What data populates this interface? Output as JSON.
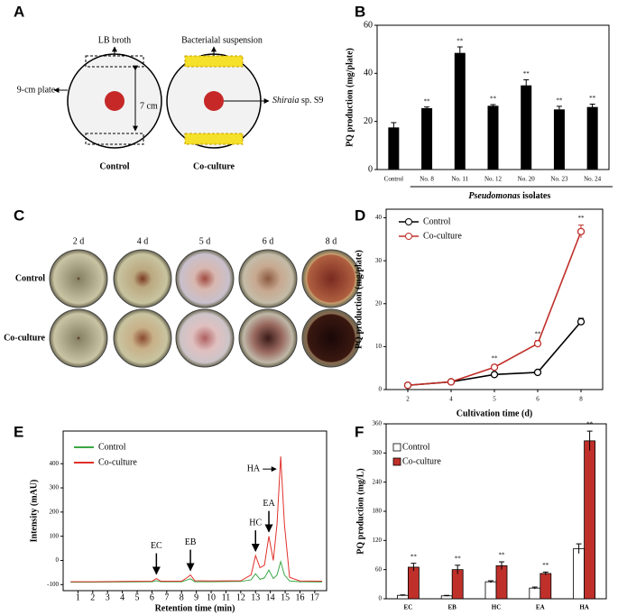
{
  "panel_labels": [
    "A",
    "B",
    "C",
    "D",
    "E",
    "F"
  ],
  "diagram": {
    "labels": {
      "lb_broth": "LB broth",
      "suspension": "Bacterialal suspension",
      "plate": "9-cm plate",
      "distance": "7 cm",
      "fungus_genus": "Shiraia",
      "fungus_rest": "sp. S9"
    },
    "captions": [
      "Control",
      "Co-culture"
    ]
  },
  "photos": {
    "columns": [
      "2 d",
      "4 d",
      "5 d",
      "6 d",
      "8 d"
    ],
    "rows": [
      "Control",
      "Co-culture"
    ]
  },
  "chart_data": [
    {
      "type": "bar",
      "categories": [
        "Control",
        "No. 8",
        "No. 11",
        "No. 12",
        "No. 20",
        "No. 23",
        "No. 24"
      ],
      "values": [
        17.5,
        25.5,
        48.5,
        26.5,
        35,
        25,
        26
      ],
      "errors": [
        2,
        0.5,
        2.5,
        0.5,
        2.3,
        1.3,
        1.2
      ],
      "significance": [
        null,
        "**",
        "**",
        "**",
        "**",
        "**",
        "**"
      ],
      "color": "#000000",
      "ylabel": "PQ production (mg/plate)",
      "group_label": {
        "italic": "Pseudomonas",
        "text": "isolates"
      },
      "ylim": [
        0,
        60
      ],
      "yticks": [
        0,
        20,
        40,
        60
      ]
    },
    {
      "type": "line",
      "categories": [
        "2",
        "4",
        "5",
        "6",
        "8"
      ],
      "series": [
        {
          "name": "Control",
          "color": "#000000",
          "values": [
            1,
            1.8,
            3.5,
            4,
            15.8
          ],
          "errors": [
            0,
            0.3,
            0.3,
            0.3,
            0.8
          ]
        },
        {
          "name": "Co-culture",
          "color": "#c0302a",
          "values": [
            1,
            1.8,
            5.2,
            10.7,
            36.8
          ],
          "errors": [
            0,
            0.3,
            0.5,
            0.7,
            1.5
          ]
        }
      ],
      "significance": [
        null,
        null,
        "**",
        "**",
        "**"
      ],
      "xlabel": "Cultivation time (d)",
      "ylabel": "PQ production (mg/plate)",
      "ylim": [
        0,
        42
      ],
      "yticks": [
        0,
        10,
        20,
        30,
        40
      ],
      "legend": "upper left"
    },
    {
      "type": "chromatogram",
      "x": [
        0.5,
        2,
        4,
        6,
        6.3,
        6.6,
        8,
        8.4,
        8.6,
        8.9,
        10,
        12,
        12.7,
        13.0,
        13.3,
        13.6,
        13.9,
        14.2,
        14.45,
        14.7,
        14.95,
        15.3,
        16,
        17.5
      ],
      "series": [
        {
          "name": "Control",
          "color": "#3aa845",
          "values": [
            -90,
            -90,
            -89,
            -88,
            -84,
            -88,
            -88,
            -80,
            -76,
            -88,
            -88,
            -87,
            -80,
            -55,
            -78,
            -72,
            -40,
            -75,
            -60,
            -5,
            -60,
            -85,
            -88,
            -89
          ]
        },
        {
          "name": "Co-culture",
          "color": "#e0302a",
          "values": [
            -88,
            -88,
            -87,
            -86,
            -75,
            -86,
            -86,
            -70,
            -60,
            -84,
            -85,
            -84,
            -60,
            20,
            -30,
            -20,
            100,
            0,
            150,
            430,
            150,
            -70,
            -85,
            -86
          ]
        }
      ],
      "annotations": [
        {
          "text": "EC",
          "x": 6.3
        },
        {
          "text": "EB",
          "x": 8.6
        },
        {
          "text": "HC",
          "x": 13.0
        },
        {
          "text": "EA",
          "x": 13.9
        },
        {
          "text": "HA",
          "x": 14.7
        }
      ],
      "xlabel": "Retention time (min)",
      "ylabel": "Intensity (mAU)",
      "xlim": [
        0,
        17.8
      ],
      "xticks": [
        1,
        2,
        3,
        4,
        5,
        6,
        7,
        8,
        9,
        10,
        11,
        12,
        13,
        14,
        15,
        16,
        17
      ],
      "ylim": [
        -125,
        535
      ],
      "yticks": [
        -100,
        0,
        100,
        200,
        300,
        400
      ],
      "legend": "upper left"
    },
    {
      "type": "grouped_bar",
      "categories": [
        "EC",
        "EB",
        "HC",
        "EA",
        "HA"
      ],
      "series": [
        {
          "name": "Control",
          "color": "#ffffff",
          "values": [
            7,
            6,
            35,
            22,
            103
          ],
          "errors": [
            1,
            1,
            2,
            2,
            10
          ]
        },
        {
          "name": "Co-culture",
          "color": "#c0302a",
          "values": [
            65,
            60,
            68,
            52,
            325
          ],
          "errors": [
            8,
            9,
            8,
            3,
            20
          ]
        }
      ],
      "significance": [
        "**",
        "**",
        "**",
        "**",
        "**"
      ],
      "ylabel": "PQ production (mg/L)",
      "ylim": [
        0,
        360
      ],
      "yticks": [
        0,
        60,
        120,
        180,
        240,
        300,
        360
      ],
      "legend": "upper left"
    }
  ]
}
